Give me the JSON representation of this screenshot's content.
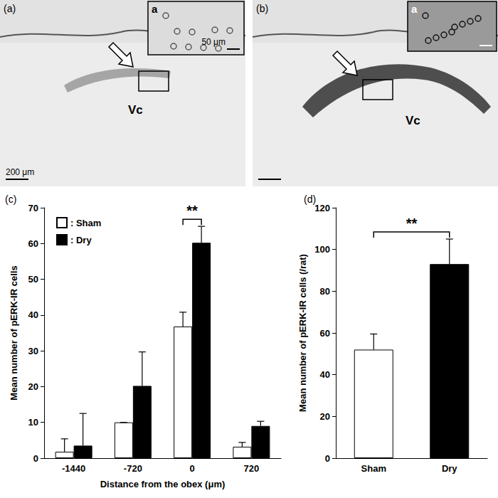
{
  "images": [
    {
      "label": "(a)",
      "region": "Vc",
      "scale_bar": "200 μm",
      "inset": {
        "label": "a",
        "scale_bar": "50 μm"
      }
    },
    {
      "label": "(b)",
      "region": "Vc",
      "inset": {
        "label": "a"
      }
    }
  ],
  "chart_data": [
    {
      "type": "bar",
      "label": "(c)",
      "x_label": "Distance from the obex (μm)",
      "y_label": "Mean number of pERK-IR cells",
      "categories": [
        "-1440",
        "-720",
        "0",
        "720"
      ],
      "series": [
        {
          "name": ": Sham",
          "color": "#ffffff",
          "values": [
            1.8,
            10,
            36.8,
            3.2
          ],
          "errors": [
            3.6,
            0,
            4,
            1.2
          ]
        },
        {
          "name": ": Dry",
          "color": "#000000",
          "values": [
            3.5,
            20.2,
            60.2,
            9
          ],
          "errors": [
            9,
            9.5,
            4.6,
            1.3
          ]
        }
      ],
      "ylim": [
        0,
        70
      ],
      "yticks": [
        0,
        10,
        20,
        30,
        40,
        50,
        60,
        70
      ],
      "grid": false,
      "legend": "upper left",
      "annotations": [
        {
          "text": "**",
          "category": "0",
          "between": [
            ": Sham",
            ": Dry"
          ]
        }
      ]
    },
    {
      "type": "bar",
      "label": "(d)",
      "y_label": "Mean number of pERK-IR cells (/rat)",
      "categories": [
        "Sham",
        "Dry"
      ],
      "values": [
        52,
        93
      ],
      "errors": [
        7.5,
        12
      ],
      "colors": [
        "#ffffff",
        "#000000"
      ],
      "ylim": [
        0,
        120
      ],
      "yticks": [
        0,
        20,
        40,
        60,
        80,
        100,
        120
      ],
      "grid": false,
      "annotations": [
        {
          "text": "**",
          "between": [
            "Sham",
            "Dry"
          ]
        }
      ]
    }
  ]
}
